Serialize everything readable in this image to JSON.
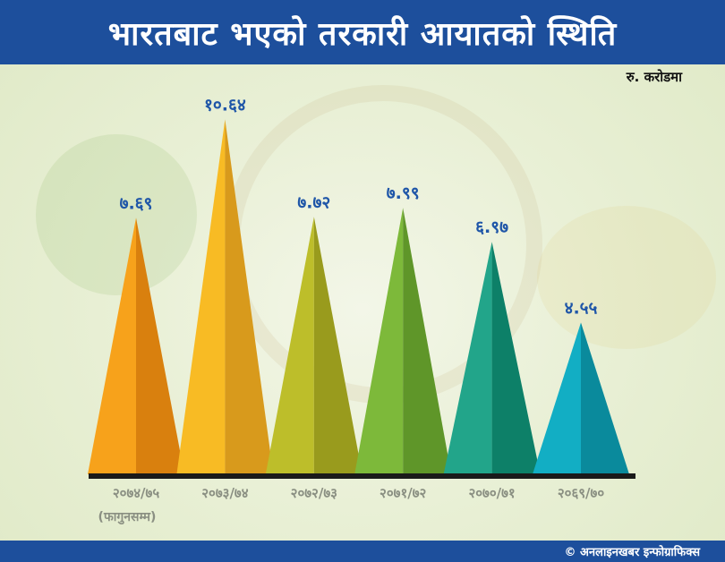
{
  "header": {
    "title": "भारतबाट भएको तरकारी आयातको स्थिति"
  },
  "unit_label": "रु. करोडमा",
  "footer": {
    "credit": "© अनलाइनखबर इन्फोग्राफिक्स"
  },
  "chart_data": {
    "type": "bar",
    "title": "भारतबाट भएको तरकारी आयातको स्थिति",
    "ylabel": "",
    "unit": "रु. करोडमा",
    "categories": [
      "२०७४/७५",
      "२०७३/७४",
      "२०७२/७३",
      "२०७१/७२",
      "२०७०/७१",
      "२०६९/७०"
    ],
    "category_notes": [
      "(फागुनसम्म)",
      "",
      "",
      "",
      "",
      ""
    ],
    "values": [
      7.69,
      10.64,
      7.72,
      7.99,
      6.97,
      4.55
    ],
    "value_labels": [
      "७.६९",
      "१०.६४",
      "७.७२",
      "७.९९",
      "६.९७",
      "४.५५"
    ],
    "ylim": [
      0,
      11
    ],
    "grid": false,
    "colors": [
      [
        "#f7a21b",
        "#d9800e"
      ],
      [
        "#f8bb24",
        "#d89a1c"
      ],
      [
        "#bdbe2a",
        "#999b1d"
      ],
      [
        "#7db93a",
        "#5f9629"
      ],
      [
        "#22a58a",
        "#0d8068"
      ],
      [
        "#12aec4",
        "#0a8a9c"
      ]
    ]
  }
}
